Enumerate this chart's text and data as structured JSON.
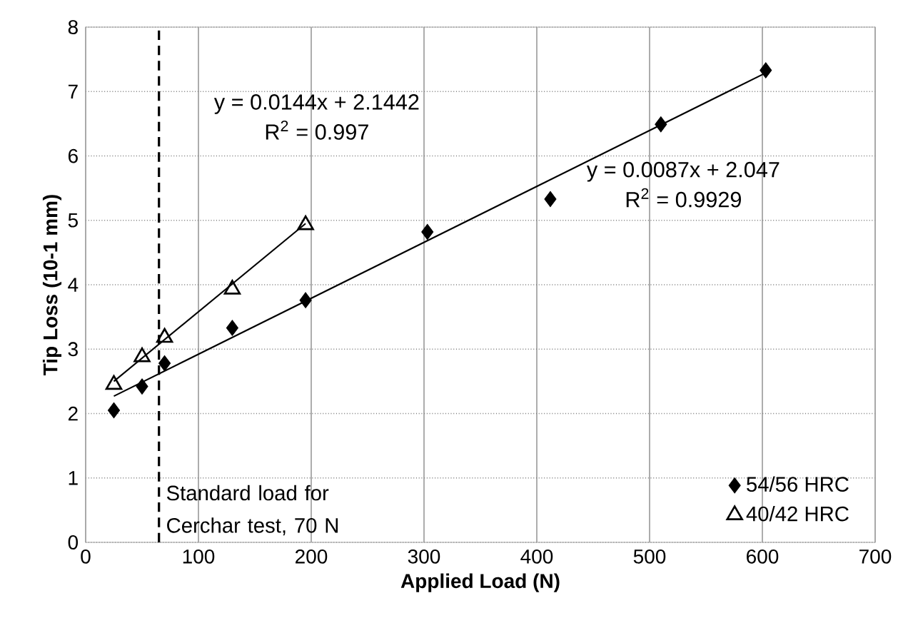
{
  "chart_data": {
    "type": "scatter",
    "xlabel": "Applied Load (N)",
    "ylabel": "Tip Loss (10-1 mm)",
    "xlim": [
      0,
      700
    ],
    "ylim": [
      0,
      8
    ],
    "xticks": [
      0,
      100,
      200,
      300,
      400,
      500,
      600,
      700
    ],
    "yticks": [
      0,
      1,
      2,
      3,
      4,
      5,
      6,
      7,
      8
    ],
    "grid": true,
    "legend": "bottom right",
    "series": [
      {
        "name": "54/56 HRC",
        "color": "#000000",
        "marker": "diamond",
        "x": [
          25,
          50,
          70,
          130,
          195,
          303,
          412,
          510,
          603
        ],
        "values": [
          2.05,
          2.42,
          2.78,
          3.33,
          3.76,
          4.82,
          5.33,
          6.49,
          7.33
        ]
      },
      {
        "name": "40/42 HRC",
        "color": "#000000",
        "marker": "triangle",
        "x": [
          25,
          50,
          70,
          130,
          195
        ],
        "values": [
          2.45,
          2.88,
          3.18,
          3.93,
          4.93
        ]
      },
      {
        "type": "line",
        "color": "#000000",
        "line_style": "solid",
        "x": [
          25,
          603
        ],
        "values": [
          2.27,
          7.29
        ]
      },
      {
        "type": "line",
        "color": "#000000",
        "line_style": "solid",
        "x": [
          25,
          195
        ],
        "values": [
          2.5,
          4.95
        ]
      }
    ],
    "ref_lines": [
      {
        "axis": "x",
        "value": 65,
        "label": "Standard load for Cerchar test, 70 N",
        "line_style": "dashed",
        "color": "#000000"
      }
    ],
    "annotations": [
      "y = 0.0144x + 2.1442",
      "R$^{2}$ = 0.997",
      "y = 0.0087x + 2.047",
      "R$^{2}$ = 0.9929"
    ]
  }
}
